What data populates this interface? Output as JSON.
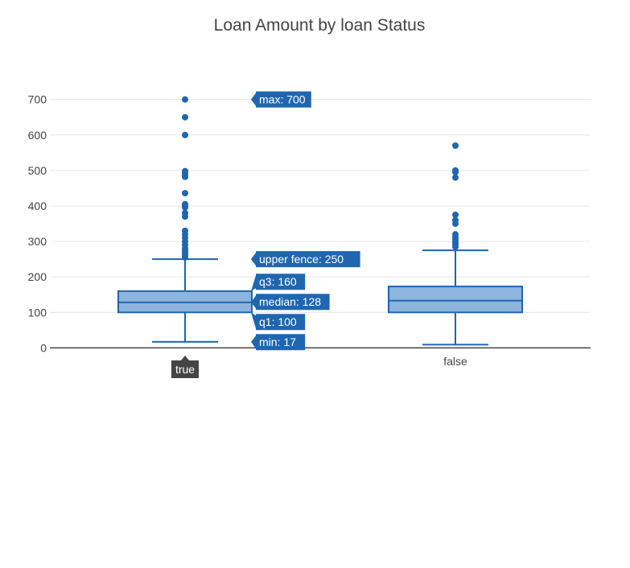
{
  "chart_data": {
    "type": "box",
    "title": "Loan Amount by loan Status",
    "xlabel": "",
    "ylabel": "",
    "ylim": [
      -15,
      765
    ],
    "yticks": [
      0,
      100,
      200,
      300,
      400,
      500,
      600,
      700
    ],
    "grid": true,
    "categories": [
      "true",
      "false"
    ],
    "colors": {
      "box_line": "#1f66b0",
      "box_fill": "#8db4dc",
      "point": "#1f66b0",
      "hover_bg": "#1f66b0",
      "axis_label_hover_bg": "#444444",
      "grid": "#e6e6e6",
      "zero_line": "#444444",
      "text": "#444444"
    },
    "boxes": [
      {
        "category": "true",
        "min": 17,
        "q1": 100,
        "median": 128,
        "q3": 160,
        "upper_fence": 250,
        "outliers": [
          700,
          650,
          600,
          498,
          494,
          488,
          482,
          436,
          405,
          400,
          396,
          380,
          370,
          330,
          320,
          310,
          300,
          290,
          280,
          275,
          270,
          265,
          260,
          255
        ]
      },
      {
        "category": "false",
        "min": 9,
        "q1": 100,
        "median": 133,
        "q3": 173,
        "upper_fence": 275,
        "outliers": [
          570,
          500,
          495,
          480,
          375,
          360,
          350,
          320,
          312,
          305,
          298,
          292,
          285
        ]
      }
    ],
    "hover": {
      "category": "true",
      "labels": [
        {
          "text": "max: 700",
          "value": 700
        },
        {
          "text": "upper fence: 250",
          "value": 250
        },
        {
          "text": "q3: 160",
          "value": 160
        },
        {
          "text": "median: 128",
          "value": 128
        },
        {
          "text": "q1: 100",
          "value": 100
        },
        {
          "text": "min: 17",
          "value": 17
        }
      ],
      "axis_label": "true"
    }
  }
}
